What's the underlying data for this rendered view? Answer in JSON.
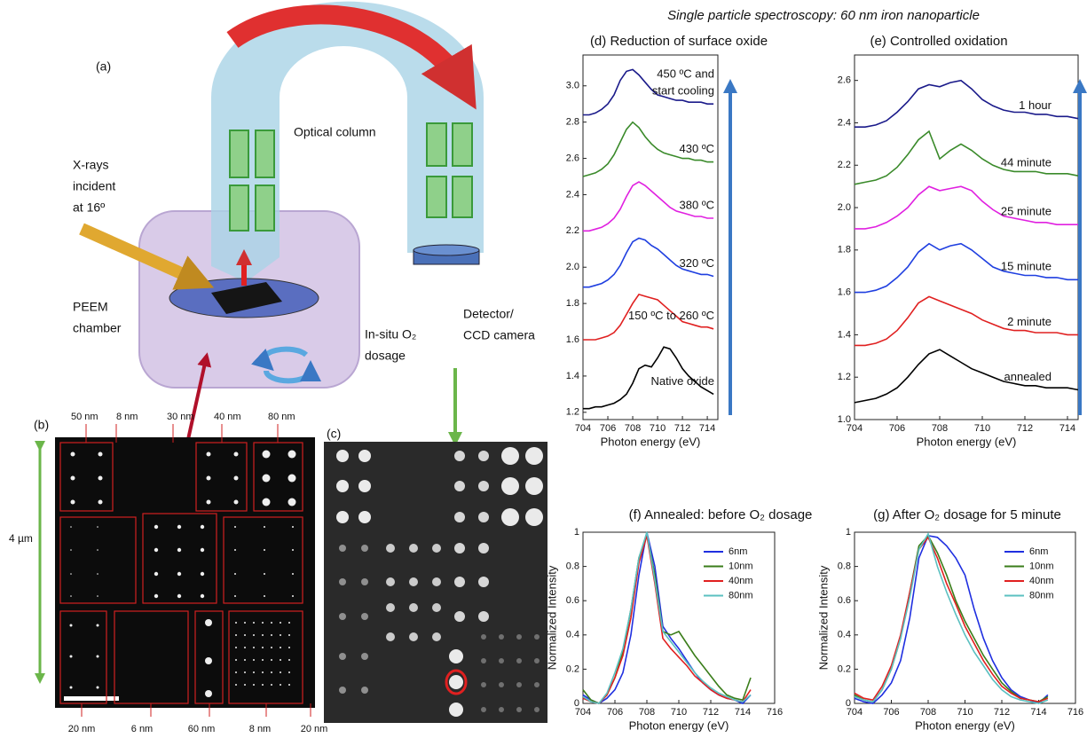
{
  "figure_title": "Single particle spectroscopy: 60 nm iron nanoparticle",
  "panel_a": {
    "label": "(a)",
    "xray": [
      "X-rays",
      "incident",
      "at 16º"
    ],
    "optical_column": "Optical column",
    "chamber": [
      "PEEM",
      "chamber"
    ],
    "dosage": [
      "In-situ O₂",
      "dosage"
    ],
    "detector": [
      "Detector/",
      "CCD camera"
    ]
  },
  "panel_b": {
    "label": "(b)",
    "top_sizes": [
      "50 nm",
      "8 nm",
      "30 nm",
      "40 nm",
      "80 nm"
    ],
    "bottom_sizes": [
      "20 nm",
      "6 nm",
      "60 nm",
      "8 nm",
      "20 nm"
    ],
    "scale": "4 µm"
  },
  "panel_c": {
    "label": "(c)"
  },
  "chart_data": [
    {
      "type": "line",
      "title": "(d)  Reduction of surface oxide",
      "xlabel": "Photon energy (eV)",
      "legend": "inline",
      "x": [
        704,
        704.5,
        705,
        705.5,
        706,
        706.5,
        707,
        707.5,
        708,
        708.5,
        709,
        709.5,
        710,
        710.5,
        711,
        711.5,
        712,
        712.5,
        713,
        713.5,
        714,
        714.5
      ],
      "xlim": [
        704,
        714.85
      ],
      "xticks": [
        704,
        706,
        708,
        710,
        712,
        714
      ],
      "ylim": [
        1.16,
        3.17
      ],
      "yticks": [
        1.2,
        1.4,
        1.6,
        1.8,
        {
          "value": 2,
          "label": "2.0"
        },
        2.2,
        2.4,
        2.6,
        2.8,
        {
          "value": 3,
          "label": "3.0"
        }
      ],
      "series": [
        {
          "name": "Native oxide",
          "color": "#000000",
          "values": [
            1.22,
            1.22,
            1.23,
            1.23,
            1.24,
            1.25,
            1.27,
            1.3,
            1.36,
            1.44,
            1.46,
            1.45,
            1.5,
            1.56,
            1.55,
            1.5,
            1.44,
            1.4,
            1.37,
            1.34,
            1.32,
            1.3
          ]
        },
        {
          "name": "150 ºC to 260 ºC",
          "color": "#e02020",
          "values": [
            1.6,
            1.6,
            1.6,
            1.61,
            1.62,
            1.64,
            1.68,
            1.74,
            1.8,
            1.85,
            1.84,
            1.83,
            1.82,
            1.79,
            1.76,
            1.73,
            1.7,
            1.69,
            1.68,
            1.67,
            1.67,
            1.66
          ]
        },
        {
          "name": "320 ºC",
          "color": "#1f3fe0",
          "values": [
            1.89,
            1.89,
            1.9,
            1.91,
            1.93,
            1.96,
            2.01,
            2.08,
            2.14,
            2.16,
            2.15,
            2.12,
            2.1,
            2.07,
            2.04,
            2.01,
            1.99,
            1.98,
            1.97,
            1.96,
            1.96,
            1.95
          ]
        },
        {
          "name": "380 ºC",
          "color": "#e020e0",
          "values": [
            2.2,
            2.2,
            2.21,
            2.22,
            2.24,
            2.27,
            2.32,
            2.39,
            2.45,
            2.47,
            2.45,
            2.42,
            2.39,
            2.36,
            2.33,
            2.31,
            2.3,
            2.29,
            2.28,
            2.28,
            2.27,
            2.27
          ]
        },
        {
          "name": "430 ºC",
          "color": "#3a8a2a",
          "values": [
            2.5,
            2.51,
            2.52,
            2.54,
            2.57,
            2.62,
            2.69,
            2.76,
            2.8,
            2.77,
            2.72,
            2.68,
            2.65,
            2.63,
            2.62,
            2.61,
            2.6,
            2.6,
            2.59,
            2.59,
            2.58,
            2.58
          ]
        },
        {
          "name": [
            "450 ºC and",
            "start cooling"
          ],
          "color": "#1a1a8a",
          "values": [
            2.84,
            2.84,
            2.85,
            2.87,
            2.9,
            2.95,
            3.03,
            3.08,
            3.09,
            3.06,
            3.02,
            2.98,
            2.95,
            2.94,
            2.93,
            2.92,
            2.92,
            2.91,
            2.91,
            2.91,
            2.9,
            2.9
          ]
        }
      ]
    },
    {
      "type": "line",
      "title": "(e)  Controlled oxidation",
      "xlabel": "Photon energy (eV)",
      "legend": "inline",
      "x": [
        704,
        704.5,
        705,
        705.5,
        706,
        706.5,
        707,
        707.5,
        708,
        708.5,
        709,
        709.5,
        710,
        710.5,
        711,
        711.5,
        712,
        712.5,
        713,
        713.5,
        714,
        714.5
      ],
      "xlim": [
        704,
        714.5
      ],
      "xticks": [
        704,
        706,
        708,
        710,
        712,
        714
      ],
      "ylim": [
        1.0,
        2.72
      ],
      "yticks": [
        {
          "value": 1,
          "label": "1.0"
        },
        1.2,
        1.4,
        1.6,
        1.8,
        {
          "value": 2,
          "label": "2.0"
        },
        2.2,
        2.4,
        2.6
      ],
      "series": [
        {
          "name": "annealed",
          "color": "#000000",
          "values": [
            1.08,
            1.09,
            1.1,
            1.12,
            1.15,
            1.2,
            1.26,
            1.31,
            1.33,
            1.3,
            1.27,
            1.24,
            1.22,
            1.2,
            1.18,
            1.17,
            1.16,
            1.16,
            1.15,
            1.15,
            1.15,
            1.14
          ]
        },
        {
          "name": "2 minute",
          "color": "#e02020",
          "values": [
            1.35,
            1.35,
            1.36,
            1.38,
            1.42,
            1.48,
            1.55,
            1.58,
            1.56,
            1.54,
            1.52,
            1.5,
            1.47,
            1.45,
            1.43,
            1.42,
            1.42,
            1.41,
            1.41,
            1.41,
            1.4,
            1.4
          ]
        },
        {
          "name": "15 minute",
          "color": "#1f3fe0",
          "values": [
            1.6,
            1.6,
            1.61,
            1.63,
            1.67,
            1.72,
            1.79,
            1.83,
            1.8,
            1.82,
            1.83,
            1.8,
            1.76,
            1.72,
            1.7,
            1.69,
            1.68,
            1.68,
            1.67,
            1.67,
            1.66,
            1.66
          ]
        },
        {
          "name": "25 minute",
          "color": "#e020e0",
          "values": [
            1.9,
            1.9,
            1.91,
            1.93,
            1.96,
            2.0,
            2.06,
            2.1,
            2.08,
            2.09,
            2.1,
            2.08,
            2.03,
            1.99,
            1.96,
            1.95,
            1.94,
            1.93,
            1.93,
            1.92,
            1.92,
            1.92
          ]
        },
        {
          "name": "44 minute",
          "color": "#3a8a2a",
          "values": [
            2.11,
            2.12,
            2.13,
            2.15,
            2.19,
            2.25,
            2.32,
            2.36,
            2.23,
            2.27,
            2.3,
            2.27,
            2.23,
            2.2,
            2.18,
            2.17,
            2.17,
            2.17,
            2.16,
            2.16,
            2.16,
            2.15
          ]
        },
        {
          "name": "1 hour",
          "color": "#1a1a8a",
          "values": [
            2.38,
            2.38,
            2.39,
            2.41,
            2.45,
            2.5,
            2.56,
            2.58,
            2.57,
            2.59,
            2.6,
            2.56,
            2.51,
            2.48,
            2.46,
            2.45,
            2.45,
            2.44,
            2.44,
            2.43,
            2.43,
            2.42
          ]
        }
      ]
    },
    {
      "type": "line",
      "title": "(f)  Annealed:  before O₂ dosage",
      "xlabel": "Photon energy (eV)",
      "ylabel": "Normalized Intensity",
      "legend": "upper right",
      "x": [
        704,
        704.5,
        705,
        705.5,
        706,
        706.5,
        707,
        707.5,
        708,
        708.5,
        709,
        709.5,
        710,
        710.5,
        711,
        711.5,
        712,
        712.5,
        713,
        713.5,
        714,
        714.5
      ],
      "xlim": [
        704,
        716
      ],
      "xticks": [
        704,
        706,
        708,
        710,
        712,
        714,
        716
      ],
      "ylim": [
        0,
        1
      ],
      "yticks": [
        0,
        0.2,
        0.4,
        0.6,
        0.8,
        1
      ],
      "series": [
        {
          "name": "6nm",
          "color": "#1f2fe0",
          "values": [
            0.05,
            0.02,
            0.0,
            0.03,
            0.08,
            0.18,
            0.4,
            0.75,
            1.0,
            0.8,
            0.45,
            0.38,
            0.32,
            0.25,
            0.18,
            0.12,
            0.08,
            0.05,
            0.03,
            0.02,
            0.0,
            0.05
          ]
        },
        {
          "name": "10nm",
          "color": "#3a7d1a",
          "values": [
            0.08,
            0.02,
            0.0,
            0.05,
            0.15,
            0.3,
            0.55,
            0.85,
            0.99,
            0.75,
            0.42,
            0.4,
            0.42,
            0.35,
            0.28,
            0.22,
            0.16,
            0.1,
            0.05,
            0.03,
            0.02,
            0.15
          ]
        },
        {
          "name": "40nm",
          "color": "#e02020",
          "values": [
            0.03,
            0.01,
            0.0,
            0.05,
            0.15,
            0.28,
            0.5,
            0.82,
            0.98,
            0.7,
            0.38,
            0.32,
            0.27,
            0.22,
            0.16,
            0.12,
            0.08,
            0.05,
            0.03,
            0.02,
            0.01,
            0.08
          ]
        },
        {
          "name": "80nm",
          "color": "#5bc0c0",
          "values": [
            0.04,
            0.01,
            0.0,
            0.06,
            0.18,
            0.32,
            0.55,
            0.85,
            1.0,
            0.72,
            0.42,
            0.36,
            0.3,
            0.24,
            0.18,
            0.13,
            0.09,
            0.06,
            0.04,
            0.02,
            0.01,
            0.05
          ]
        }
      ]
    },
    {
      "type": "line",
      "title": "(g)  After O₂ dosage for 5 minute",
      "xlabel": "Photon energy (eV)",
      "ylabel": "Normalized Intensity",
      "legend": "upper right",
      "x": [
        704,
        704.5,
        705,
        705.5,
        706,
        706.5,
        707,
        707.5,
        708,
        708.5,
        709,
        709.5,
        710,
        710.5,
        711,
        711.5,
        712,
        712.5,
        713,
        713.5,
        714,
        714.5
      ],
      "xlim": [
        704,
        716
      ],
      "xticks": [
        704,
        706,
        708,
        710,
        712,
        714,
        716
      ],
      "ylim": [
        0,
        1
      ],
      "yticks": [
        0,
        0.2,
        0.4,
        0.6,
        0.8,
        1
      ],
      "series": [
        {
          "name": "6nm",
          "color": "#1f2fe0",
          "values": [
            0.03,
            0.01,
            0.0,
            0.05,
            0.12,
            0.25,
            0.5,
            0.85,
            0.98,
            0.97,
            0.92,
            0.85,
            0.75,
            0.55,
            0.38,
            0.25,
            0.15,
            0.08,
            0.04,
            0.02,
            0.0,
            0.05
          ]
        },
        {
          "name": "10nm",
          "color": "#3a7d1a",
          "values": [
            0.05,
            0.02,
            0.01,
            0.08,
            0.2,
            0.38,
            0.65,
            0.92,
            0.98,
            0.88,
            0.75,
            0.6,
            0.48,
            0.38,
            0.28,
            0.2,
            0.12,
            0.07,
            0.03,
            0.02,
            0.01,
            0.04
          ]
        },
        {
          "name": "40nm",
          "color": "#e02020",
          "values": [
            0.06,
            0.03,
            0.02,
            0.1,
            0.22,
            0.4,
            0.65,
            0.9,
            0.97,
            0.85,
            0.7,
            0.58,
            0.45,
            0.35,
            0.25,
            0.17,
            0.1,
            0.06,
            0.03,
            0.02,
            0.01,
            0.03
          ]
        },
        {
          "name": "80nm",
          "color": "#5bc0c0",
          "values": [
            0.04,
            0.02,
            0.01,
            0.08,
            0.2,
            0.38,
            0.62,
            0.9,
            0.99,
            0.8,
            0.65,
            0.52,
            0.4,
            0.3,
            0.22,
            0.14,
            0.08,
            0.04,
            0.02,
            0.01,
            0.0,
            0.02
          ]
        }
      ]
    }
  ]
}
